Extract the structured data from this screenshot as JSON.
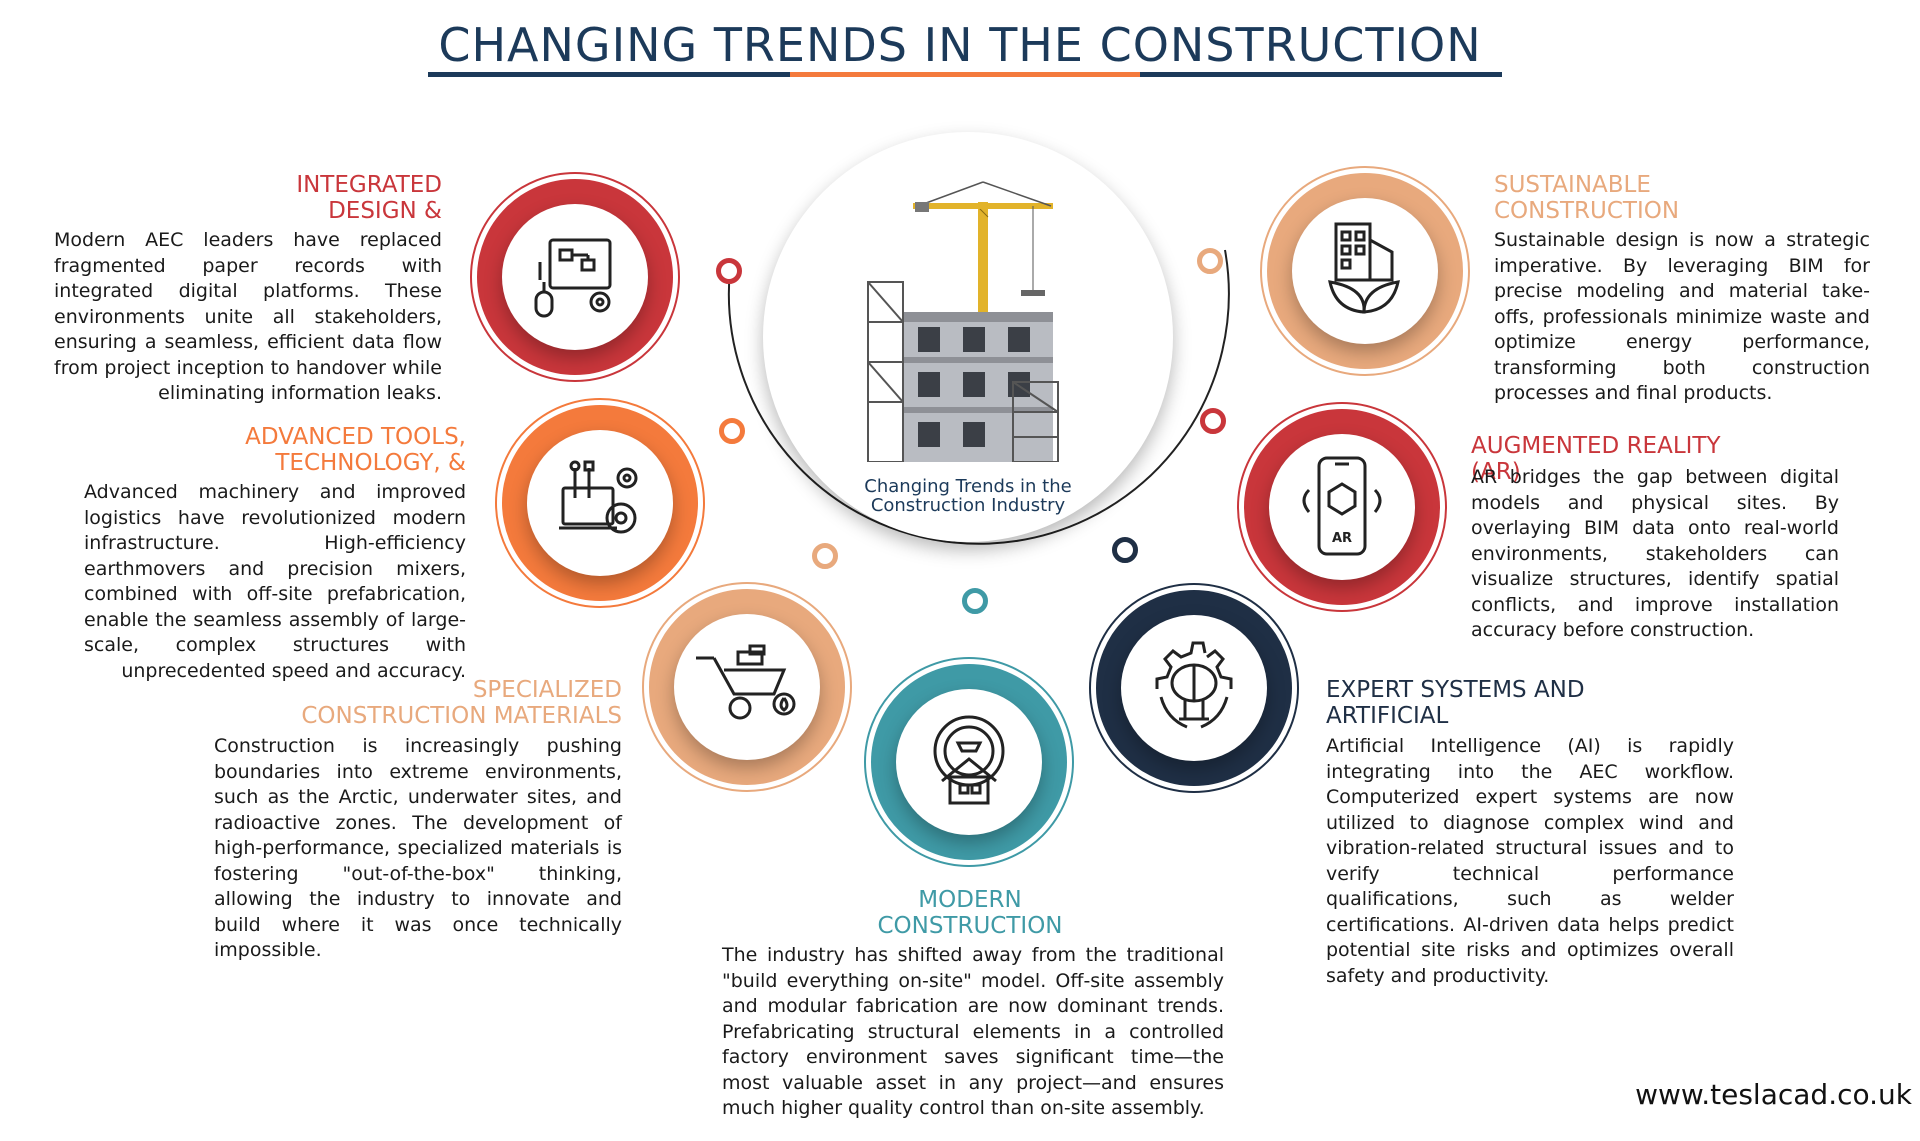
{
  "title": "CHANGING TRENDS IN THE CONSTRUCTION",
  "center": {
    "line1": "Changing Trends in the",
    "line2": "Construction Industry"
  },
  "colors": {
    "navy": "#1c3a5a",
    "orange": "#f47a3c",
    "red": "#c9363b",
    "peach": "#e8a97d",
    "teal": "#3f9aa6",
    "dark": "#1f2f45"
  },
  "sections": {
    "integrated": {
      "title1": "INTEGRATED",
      "title2": "DESIGN &",
      "body": "Modern AEC leaders have replaced fragmented paper records with integrated digital platforms. These environments unite all stakeholders, ensuring a seamless, efficient data flow from project inception to handover while eliminating information leaks.",
      "icon": "digital-design-icon"
    },
    "advanced": {
      "title1": "ADVANCED TOOLS,",
      "title2": "TECHNOLOGY, &",
      "body": "Advanced machinery and improved logistics have revolutionized modern infrastructure. High-efficiency earthmovers and precision mixers, combined with off-site prefabrication, enable the seamless assembly of large-scale, complex structures with unprecedented speed and accuracy.",
      "icon": "tools-gear-icon"
    },
    "materials": {
      "title1": "SPECIALIZED",
      "title2": "CONSTRUCTION MATERIALS",
      "body": "Construction is increasingly pushing boundaries into extreme environments, such as the Arctic, underwater sites, and radioactive zones. The development of high-performance, specialized materials is fostering \"out-of-the-box\" thinking, allowing the industry to innovate and build where it was once technically impossible.",
      "icon": "wheelbarrow-icon"
    },
    "modern": {
      "title1": "MODERN",
      "title2": "CONSTRUCTION",
      "body": "The industry has shifted away from the traditional \"build everything on-site\" model. Off-site assembly and modular fabrication are now dominant trends. Prefabricating structural elements in a controlled factory environment saves significant time—the most valuable asset in any project—and ensures much higher quality control than on-site assembly.",
      "icon": "house-gear-icon"
    },
    "expert": {
      "title1": "EXPERT SYSTEMS AND",
      "title2": "ARTIFICIAL",
      "body": "Artificial Intelligence (AI) is rapidly integrating into the AEC workflow. Computerized expert systems are now utilized to diagnose complex wind and vibration-related structural issues and to verify technical performance qualifications, such as welder certifications. AI-driven data helps predict potential site risks and optimizes overall safety and productivity.",
      "icon": "ai-brain-gear-icon"
    },
    "ar": {
      "title1": "AUGMENTED REALITY",
      "title2": "(AR)",
      "body": "AR bridges the gap between digital models and physical sites. By overlaying BIM data onto real-world environments, stakeholders can visualize structures, identify spatial conflicts, and improve installation accuracy before construction.",
      "icon_label": "AR",
      "icon": "ar-phone-icon"
    },
    "sustainable": {
      "title1": "SUSTAINABLE",
      "title2": "CONSTRUCTION",
      "body": "Sustainable design is now a strategic imperative. By leveraging BIM for precise modeling and material take-offs, professionals minimize waste and optimize energy performance, transforming both construction processes and final products.",
      "icon": "green-building-icon"
    }
  },
  "footer": "www.teslacad.co.uk"
}
